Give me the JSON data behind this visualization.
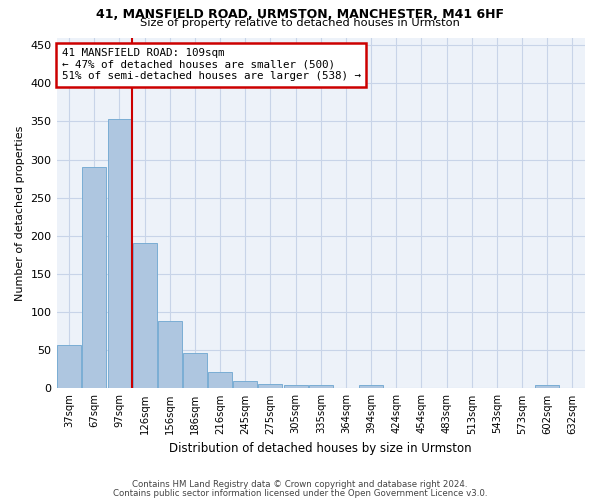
{
  "title1": "41, MANSFIELD ROAD, URMSTON, MANCHESTER, M41 6HF",
  "title2": "Size of property relative to detached houses in Urmston",
  "xlabel": "Distribution of detached houses by size in Urmston",
  "ylabel": "Number of detached properties",
  "categories": [
    "37sqm",
    "67sqm",
    "97sqm",
    "126sqm",
    "156sqm",
    "186sqm",
    "216sqm",
    "245sqm",
    "275sqm",
    "305sqm",
    "335sqm",
    "364sqm",
    "394sqm",
    "424sqm",
    "454sqm",
    "483sqm",
    "513sqm",
    "543sqm",
    "573sqm",
    "602sqm",
    "632sqm"
  ],
  "values": [
    57,
    290,
    353,
    190,
    88,
    46,
    21,
    10,
    6,
    5,
    4,
    0,
    4,
    0,
    0,
    0,
    0,
    0,
    0,
    5,
    0
  ],
  "bar_color": "#aec6e0",
  "bar_edge_color": "#7aadd4",
  "grid_color": "#c8d4e8",
  "bg_color": "#edf2f9",
  "vline_color": "#cc0000",
  "annotation_text": "41 MANSFIELD ROAD: 109sqm\n← 47% of detached houses are smaller (500)\n51% of semi-detached houses are larger (538) →",
  "annotation_box_color": "#ffffff",
  "annotation_box_edge": "#cc0000",
  "ylim": [
    0,
    460
  ],
  "yticks": [
    0,
    50,
    100,
    150,
    200,
    250,
    300,
    350,
    400,
    450
  ],
  "footer1": "Contains HM Land Registry data © Crown copyright and database right 2024.",
  "footer2": "Contains public sector information licensed under the Open Government Licence v3.0."
}
